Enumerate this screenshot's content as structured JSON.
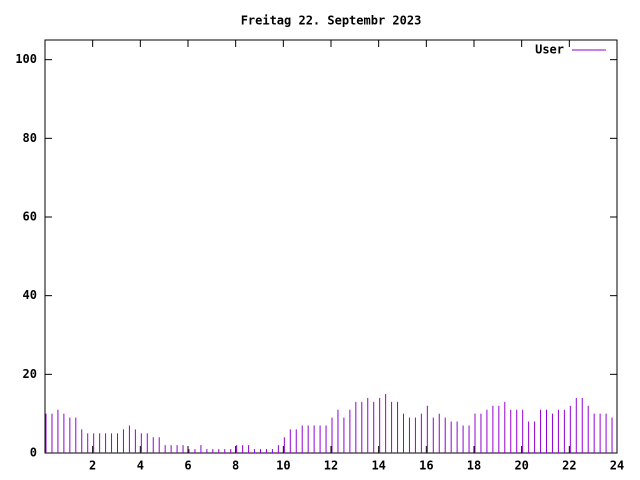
{
  "chart_data": {
    "type": "impulses",
    "title": "Freitag 22. Septembr 2023",
    "x": [
      0,
      0.25,
      0.5,
      0.75,
      1,
      1.25,
      1.5,
      1.75,
      2,
      2.25,
      2.5,
      2.75,
      3,
      3.25,
      3.5,
      3.75,
      4,
      4.25,
      4.5,
      4.75,
      5,
      5.25,
      5.5,
      5.75,
      6,
      6.25,
      6.5,
      6.75,
      7,
      7.25,
      7.5,
      7.75,
      8,
      8.25,
      8.5,
      8.75,
      9,
      9.25,
      9.5,
      9.75,
      10,
      10.25,
      10.5,
      10.75,
      11,
      11.25,
      11.5,
      11.75,
      12,
      12.25,
      12.5,
      12.75,
      13,
      13.25,
      13.5,
      13.75,
      14,
      14.25,
      14.5,
      14.75,
      15,
      15.25,
      15.5,
      15.75,
      16,
      16.25,
      16.5,
      16.75,
      17,
      17.25,
      17.5,
      17.75,
      18,
      18.25,
      18.5,
      18.75,
      19,
      19.25,
      19.5,
      19.75,
      20,
      20.25,
      20.5,
      20.75,
      21,
      21.25,
      21.5,
      21.75,
      22,
      22.25,
      22.5,
      22.75,
      23,
      23.25,
      23.5,
      23.75
    ],
    "series": [
      {
        "name": "User",
        "color": "#9400d3",
        "values": [
          10,
          10,
          11,
          10,
          9,
          9,
          6,
          5,
          5,
          5,
          5,
          5,
          5,
          6,
          7,
          6,
          5,
          5,
          4,
          4,
          2,
          2,
          2,
          2,
          1,
          1,
          2,
          1,
          1,
          1,
          1,
          1,
          2,
          2,
          2,
          1,
          1,
          1,
          1,
          2,
          4,
          6,
          6,
          7,
          7,
          7,
          7,
          7,
          9,
          11,
          9,
          11,
          13,
          13,
          14,
          13,
          14,
          15,
          13,
          13,
          10,
          9,
          9,
          10,
          12,
          9,
          10,
          9,
          8,
          8,
          7,
          7,
          10,
          10,
          11,
          12,
          12,
          13,
          11,
          11,
          11,
          8,
          8,
          11,
          11,
          10,
          11,
          11,
          12,
          14,
          14,
          12,
          10,
          10,
          10,
          9
        ]
      }
    ],
    "xlim": [
      0,
      24
    ],
    "xticks": [
      2,
      4,
      6,
      8,
      10,
      12,
      14,
      16,
      18,
      20,
      22,
      24
    ],
    "ylim": [
      0,
      105
    ],
    "yticks": [
      0,
      20,
      40,
      60,
      80,
      100
    ],
    "legend": "top-right"
  }
}
